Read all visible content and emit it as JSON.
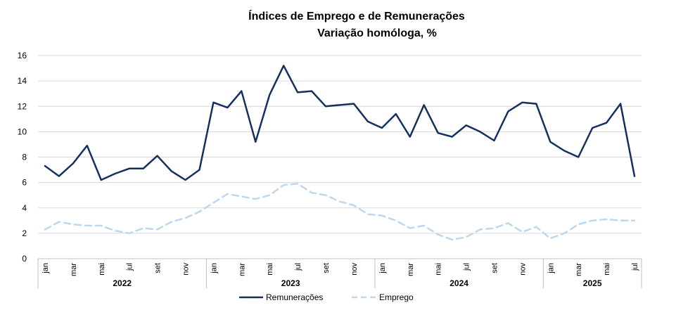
{
  "chart_data": {
    "type": "line",
    "title": "Índices de Emprego e de Remunerações",
    "subtitle": "Variação homóloga, %",
    "xlabel": "",
    "ylabel": "",
    "ylim": [
      0,
      16
    ],
    "yticks": [
      0,
      2,
      4,
      6,
      8,
      10,
      12,
      14,
      16
    ],
    "grid": true,
    "legend": "bottom-center",
    "month_labels": [
      "jan",
      "",
      "mar",
      "",
      "mai",
      "",
      "jul",
      "",
      "set",
      "",
      "nov",
      "",
      "jan",
      "",
      "mar",
      "",
      "mai",
      "",
      "jul",
      "",
      "set",
      "",
      "nov",
      "",
      "jan",
      "",
      "mar",
      "",
      "mai",
      "",
      "jul",
      "",
      "set",
      "",
      "nov",
      "",
      "jan",
      "",
      "mar",
      "",
      "mai",
      "",
      "jul"
    ],
    "years": [
      {
        "label": "2022",
        "start": 0,
        "end": 11
      },
      {
        "label": "2023",
        "start": 12,
        "end": 23
      },
      {
        "label": "2024",
        "start": 24,
        "end": 35
      },
      {
        "label": "2025",
        "start": 36,
        "end": 42
      }
    ],
    "series": [
      {
        "name": "Remunerações",
        "color": "#14305e",
        "style": "solid",
        "values": [
          7.3,
          6.5,
          7.5,
          8.9,
          6.2,
          6.7,
          7.1,
          7.1,
          8.1,
          6.9,
          6.2,
          7.0,
          12.3,
          11.9,
          13.2,
          9.2,
          12.9,
          15.2,
          13.1,
          13.2,
          12.0,
          12.1,
          12.2,
          10.8,
          10.3,
          11.4,
          9.6,
          12.1,
          9.9,
          9.6,
          10.5,
          10.0,
          9.3,
          11.6,
          12.3,
          12.2,
          9.2,
          8.5,
          8.0,
          10.3,
          10.7,
          12.2,
          6.5
        ]
      },
      {
        "name": "Emprego",
        "color": "#bcd7ee",
        "style": "dashed",
        "values": [
          2.3,
          2.9,
          2.7,
          2.6,
          2.6,
          2.2,
          2.0,
          2.4,
          2.3,
          2.9,
          3.2,
          3.7,
          4.4,
          5.1,
          4.9,
          4.7,
          5.0,
          5.8,
          5.9,
          5.2,
          5.0,
          4.5,
          4.2,
          3.5,
          3.4,
          3.0,
          2.4,
          2.6,
          1.9,
          1.5,
          1.7,
          2.3,
          2.4,
          2.8,
          2.1,
          2.5,
          1.6,
          2.0,
          2.7,
          3.0,
          3.1,
          3.0,
          3.0
        ]
      }
    ]
  }
}
